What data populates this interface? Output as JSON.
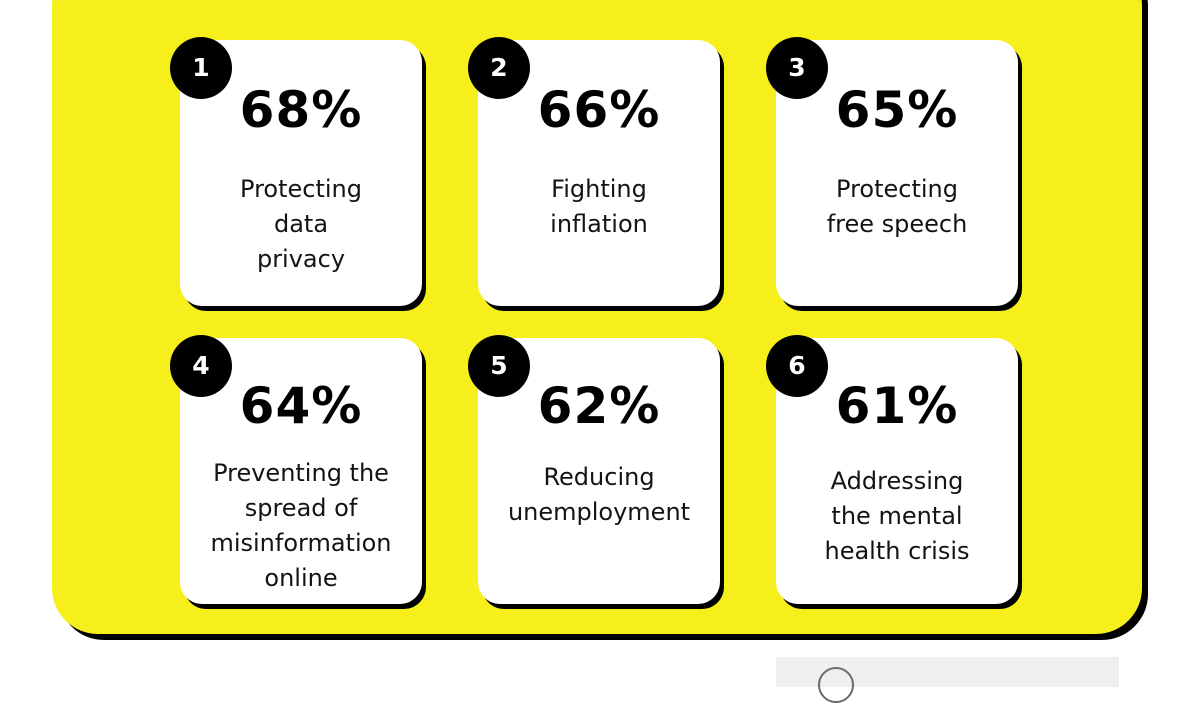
{
  "stats": [
    {
      "rank": "1",
      "percent": "68%",
      "label": "Protecting\ndata\nprivacy"
    },
    {
      "rank": "2",
      "percent": "66%",
      "label": "Fighting\ninflation"
    },
    {
      "rank": "3",
      "percent": "65%",
      "label": "Protecting\nfree speech"
    },
    {
      "rank": "4",
      "percent": "64%",
      "label": "Preventing the\nspread of\nmisinformation\nonline"
    },
    {
      "rank": "5",
      "percent": "62%",
      "label": "Reducing\nunemployment"
    },
    {
      "rank": "6",
      "percent": "61%",
      "label": "Addressing\nthe mental\nhealth crisis"
    }
  ],
  "colors": {
    "panel_background": "#f7ef1c",
    "card_background": "#ffffff",
    "badge_background": "#000000",
    "shadow": "#000000"
  }
}
